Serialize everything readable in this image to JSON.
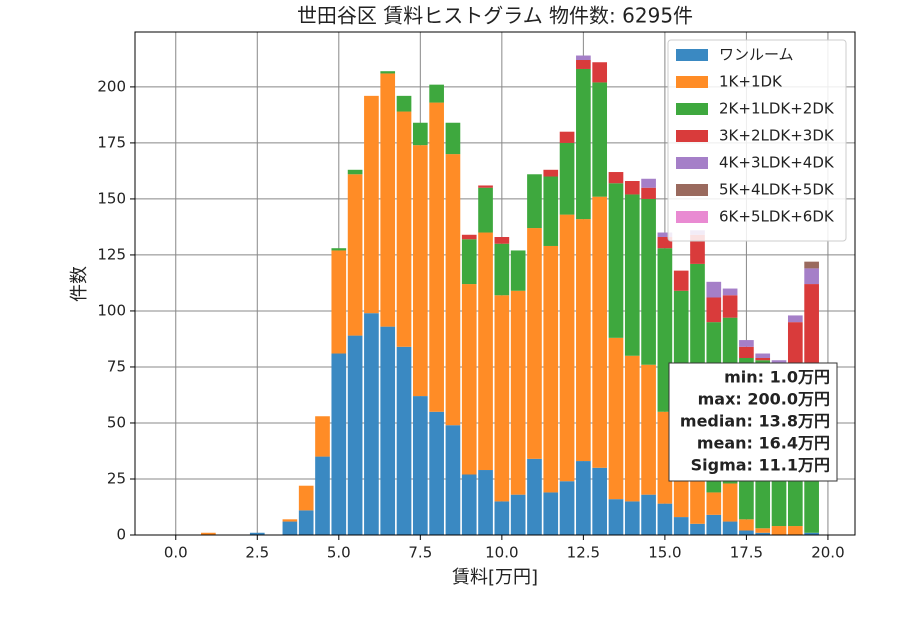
{
  "chart_data": {
    "type": "histogram",
    "title": "世田谷区 賃料ヒストグラム  物件数: 6295件",
    "xlabel": "賃料[万円]",
    "ylabel": "件数",
    "bins": [
      0.75,
      1.25,
      1.75,
      2.25,
      2.75,
      3.25,
      3.75,
      4.25,
      4.75,
      5.25,
      5.75,
      6.25,
      6.75,
      7.25,
      7.75,
      8.25,
      8.75,
      9.25,
      9.75,
      10.25,
      10.75,
      11.25,
      11.75,
      12.25,
      12.75,
      13.25,
      13.75,
      14.25,
      14.75,
      15.25,
      15.75,
      16.25,
      16.75,
      17.25,
      17.75,
      18.25,
      18.75,
      19.25,
      19.75
    ],
    "series": [
      {
        "name": "ワンルーム",
        "color": "#3a89c2",
        "values": [
          0,
          0,
          0,
          1,
          0,
          6,
          11,
          35,
          81,
          89,
          99,
          93,
          84,
          62,
          55,
          49,
          27,
          29,
          15,
          18,
          34,
          19,
          24,
          33,
          30,
          16,
          15,
          18,
          14,
          8,
          5,
          9,
          6,
          2,
          1,
          0,
          0,
          1
        ]
      },
      {
        "name": "1K+1DK",
        "color": "#ff8c26",
        "values": [
          1,
          0,
          0,
          0,
          0,
          1,
          11,
          18,
          46,
          72,
          97,
          113,
          105,
          112,
          138,
          121,
          85,
          106,
          92,
          91,
          103,
          110,
          119,
          108,
          121,
          72,
          65,
          58,
          41,
          20,
          31,
          10,
          17,
          5,
          2,
          4,
          4,
          0
        ]
      },
      {
        "name": "2K+1LDK+2DK",
        "color": "#3ea83e",
        "values": [
          0,
          0,
          0,
          0,
          0,
          0,
          0,
          0,
          1,
          2,
          0,
          1,
          7,
          10,
          8,
          14,
          20,
          20,
          23,
          18,
          24,
          31,
          32,
          67,
          51,
          69,
          72,
          74,
          73,
          81,
          85,
          76,
          74,
          72,
          75,
          72,
          69,
          71
        ]
      },
      {
        "name": "3K+2LDK+3DK",
        "color": "#d93b3b",
        "values": [
          0,
          0,
          0,
          0,
          0,
          0,
          0,
          0,
          0,
          0,
          0,
          0,
          0,
          0,
          0,
          0,
          2,
          1,
          3,
          0,
          0,
          3,
          5,
          4,
          9,
          5,
          6,
          5,
          5,
          9,
          13,
          11,
          10,
          5,
          1,
          1,
          22,
          40
        ]
      },
      {
        "name": "4K+3LDK+4DK",
        "color": "#a57fc8",
        "values": [
          0,
          0,
          0,
          0,
          0,
          0,
          0,
          0,
          0,
          0,
          0,
          0,
          0,
          0,
          0,
          0,
          0,
          0,
          0,
          0,
          0,
          0,
          0,
          2,
          0,
          0,
          0,
          4,
          2,
          0,
          2,
          7,
          3,
          3,
          2,
          1,
          3,
          7
        ]
      },
      {
        "name": "5K+4LDK+5DK",
        "color": "#9a6a5e",
        "values": [
          0,
          0,
          0,
          0,
          0,
          0,
          0,
          0,
          0,
          0,
          0,
          0,
          0,
          0,
          0,
          0,
          0,
          0,
          0,
          0,
          0,
          0,
          0,
          0,
          0,
          0,
          0,
          0,
          0,
          0,
          0,
          0,
          0,
          0,
          0,
          0,
          0,
          3
        ]
      },
      {
        "name": "6K+5LDK+6DK",
        "color": "#e98ad2",
        "values": [
          0,
          0,
          0,
          0,
          0,
          0,
          0,
          0,
          0,
          0,
          0,
          0,
          0,
          0,
          0,
          0,
          0,
          0,
          0,
          0,
          0,
          0,
          0,
          0,
          0,
          0,
          0,
          0,
          0,
          0,
          0,
          0,
          0,
          0,
          0,
          0,
          0,
          0
        ]
      }
    ],
    "xlim": [
      -1.25,
      20.83
    ],
    "ylim": [
      0,
      224.5
    ],
    "xticks": [
      {
        "value": 0,
        "label": "0.0"
      },
      {
        "value": 2.5,
        "label": "2.5"
      },
      {
        "value": 5,
        "label": "5.0"
      },
      {
        "value": 7.5,
        "label": "7.5"
      },
      {
        "value": 10,
        "label": "10.0"
      },
      {
        "value": 12.5,
        "label": "12.5"
      },
      {
        "value": 15,
        "label": "15.0"
      },
      {
        "value": 17.5,
        "label": "17.5"
      },
      {
        "value": 20,
        "label": "20.0"
      }
    ],
    "yticks": [
      0,
      25,
      50,
      75,
      100,
      125,
      150,
      175,
      200
    ],
    "grid": true,
    "legend": "upper right",
    "annotation": [
      "min: 1.0万円",
      "max: 200.0万円",
      "median: 13.8万円",
      "mean: 16.4万円",
      "Sigma: 11.1万円"
    ]
  }
}
